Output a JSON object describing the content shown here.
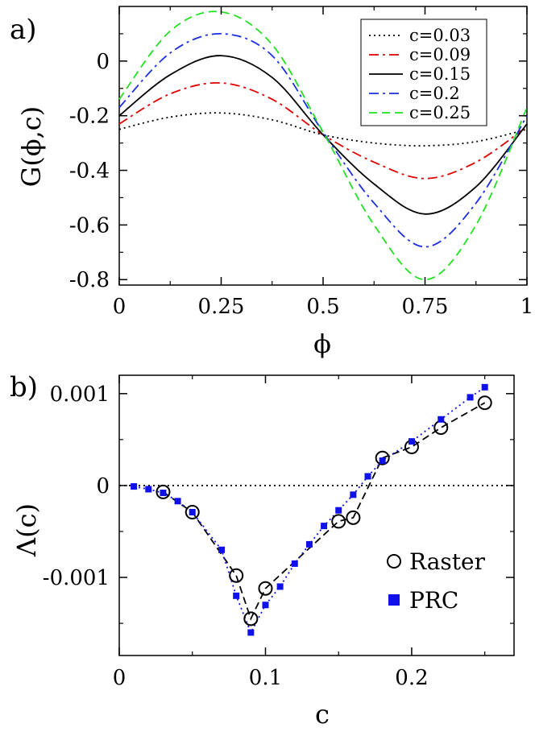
{
  "chart_data": [
    {
      "type": "line",
      "panel_label": "a)",
      "title": "",
      "xlabel": "ϕ",
      "ylabel": "G(ϕ,c)",
      "xlim": [
        0,
        1
      ],
      "ylim": [
        -0.82,
        0.2
      ],
      "x_ticks": [
        {
          "v": 0,
          "label": "0"
        },
        {
          "v": 0.25,
          "label": "0.25"
        },
        {
          "v": 0.5,
          "label": "0.5"
        },
        {
          "v": 0.75,
          "label": "0.75"
        },
        {
          "v": 1,
          "label": "1"
        }
      ],
      "y_ticks": [
        {
          "v": 0,
          "label": "0"
        },
        {
          "v": -0.2,
          "label": "-0.2"
        },
        {
          "v": -0.4,
          "label": "-0.4"
        },
        {
          "v": -0.6,
          "label": "-0.6"
        },
        {
          "v": -0.8,
          "label": "-0.8"
        }
      ],
      "grid": false,
      "legend_position": "top-right",
      "series": [
        {
          "name": "c=0.03",
          "color": "#000000",
          "dash": "dotted",
          "x": [
            0,
            0.125,
            0.25,
            0.375,
            0.5,
            0.625,
            0.75,
            0.875,
            1
          ],
          "y": [
            -0.25,
            -0.205,
            -0.19,
            -0.215,
            -0.27,
            -0.3,
            -0.31,
            -0.295,
            -0.25
          ]
        },
        {
          "name": "c=0.09",
          "color": "#e00000",
          "dash": "dashdot",
          "x": [
            0,
            0.125,
            0.25,
            0.375,
            0.5,
            0.625,
            0.75,
            0.875,
            1
          ],
          "y": [
            -0.23,
            -0.12,
            -0.08,
            -0.14,
            -0.27,
            -0.37,
            -0.43,
            -0.37,
            -0.24
          ]
        },
        {
          "name": "c=0.15",
          "color": "#000000",
          "dash": "solid",
          "x": [
            0,
            0.125,
            0.25,
            0.375,
            0.5,
            0.625,
            0.75,
            0.875,
            1
          ],
          "y": [
            -0.2,
            -0.05,
            0.02,
            -0.06,
            -0.27,
            -0.45,
            -0.56,
            -0.46,
            -0.23
          ]
        },
        {
          "name": "c=0.2",
          "color": "#1c2fe0",
          "dash": "dashdot",
          "x": [
            0,
            0.125,
            0.25,
            0.375,
            0.5,
            0.625,
            0.75,
            0.875,
            1
          ],
          "y": [
            -0.17,
            0.03,
            0.1,
            0.02,
            -0.26,
            -0.52,
            -0.68,
            -0.52,
            -0.2
          ]
        },
        {
          "name": "c=0.25",
          "color": "#22e022",
          "dash": "dashed",
          "x": [
            0,
            0.125,
            0.25,
            0.375,
            0.5,
            0.625,
            0.75,
            0.875,
            1
          ],
          "y": [
            -0.14,
            0.11,
            0.18,
            0.06,
            -0.26,
            -0.6,
            -0.8,
            -0.6,
            -0.17
          ]
        }
      ]
    },
    {
      "type": "scatter",
      "panel_label": "b)",
      "title": "",
      "xlabel": "c",
      "ylabel": "Λ(c)",
      "xlim": [
        0,
        0.27
      ],
      "ylim": [
        -0.00185,
        0.0012
      ],
      "x_ticks": [
        {
          "v": 0,
          "label": "0"
        },
        {
          "v": 0.1,
          "label": "0.1"
        },
        {
          "v": 0.2,
          "label": "0.2"
        }
      ],
      "y_ticks": [
        {
          "v": 0.001,
          "label": "0.001"
        },
        {
          "v": 0,
          "label": "0"
        },
        {
          "v": -0.001,
          "label": "-0.001"
        }
      ],
      "grid": false,
      "zero_line": true,
      "legend_position": "bottom-right",
      "series": [
        {
          "name": "Raster",
          "marker": "open-circle",
          "color": "#000000",
          "dash": "dashed",
          "x": [
            0.03,
            0.05,
            0.08,
            0.09,
            0.1,
            0.15,
            0.16,
            0.18,
            0.2,
            0.22,
            0.25
          ],
          "y": [
            -7e-05,
            -0.00029,
            -0.00098,
            -0.00145,
            -0.00112,
            -0.00039,
            -0.00035,
            0.0003,
            0.00042,
            0.00063,
            0.0009
          ]
        },
        {
          "name": "PRC",
          "marker": "filled-square",
          "color": "#1010e8",
          "dash": "dotted",
          "x": [
            0.01,
            0.02,
            0.03,
            0.04,
            0.05,
            0.07,
            0.08,
            0.09,
            0.1,
            0.11,
            0.12,
            0.13,
            0.14,
            0.15,
            0.16,
            0.17,
            0.18,
            0.2,
            0.22,
            0.24,
            0.25
          ],
          "y": [
            -1e-05,
            -4e-05,
            -8e-05,
            -0.00017,
            -0.00029,
            -0.0007,
            -0.0012,
            -0.0016,
            -0.0013,
            -0.0011,
            -0.00085,
            -0.00064,
            -0.00044,
            -0.00027,
            -0.0001,
            0.0001,
            0.00027,
            0.00048,
            0.00072,
            0.00096,
            0.00107
          ]
        }
      ]
    }
  ]
}
